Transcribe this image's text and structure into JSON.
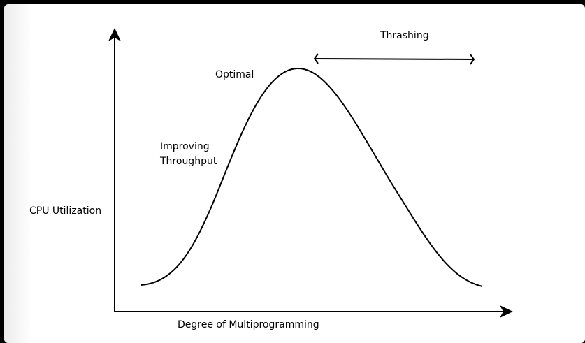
{
  "labels": {
    "y_axis": "CPU Utilization",
    "x_axis": "Degree of Multiprogramming",
    "optimal": "Optimal",
    "improving_line1": "Improving",
    "improving_line2": "Throughput",
    "thrashing": "Thrashing"
  },
  "colors": {
    "background": "#000000",
    "canvas": "#ffffff",
    "stroke": "#000000"
  }
}
